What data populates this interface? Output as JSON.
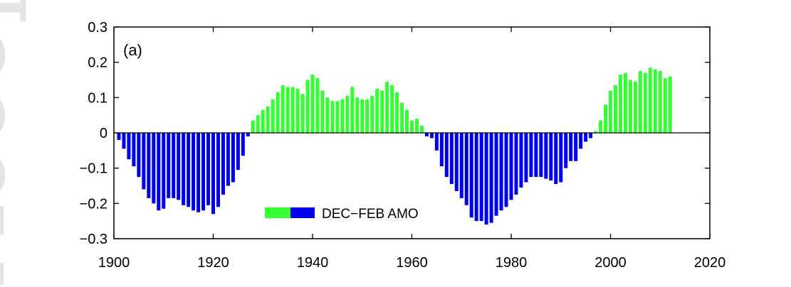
{
  "watermark": {
    "text": "Accepted"
  },
  "chart_data": {
    "type": "bar",
    "panel_label": "(a)",
    "title": "",
    "xlabel": "",
    "ylabel": "",
    "xlim": [
      1900,
      2020
    ],
    "ylim": [
      -0.3,
      0.3
    ],
    "x_ticks": [
      1900,
      1920,
      1940,
      1960,
      1980,
      2000,
      2020
    ],
    "x_tick_labels": [
      "1900",
      "1920",
      "1940",
      "1960",
      "1980",
      "2000",
      "2020"
    ],
    "y_ticks": [
      0.3,
      0.2,
      0.1,
      0,
      -0.1,
      -0.2,
      -0.3
    ],
    "y_tick_labels": [
      "0.3",
      "0.2",
      "0.1",
      "0",
      "−0.1",
      "−0.2",
      "−0.3"
    ],
    "grid": false,
    "colors": {
      "positive": "#33ff33",
      "negative": "#0000ee",
      "zero_line": "#000000"
    },
    "legend": {
      "label": "DEC−FEB AMO",
      "placement": "bottom-center"
    },
    "series": [
      {
        "name": "DEC−FEB AMO",
        "x": [
          1901,
          1902,
          1903,
          1904,
          1905,
          1906,
          1907,
          1908,
          1909,
          1910,
          1911,
          1912,
          1913,
          1914,
          1915,
          1916,
          1917,
          1918,
          1919,
          1920,
          1921,
          1922,
          1923,
          1924,
          1925,
          1926,
          1927,
          1928,
          1929,
          1930,
          1931,
          1932,
          1933,
          1934,
          1935,
          1936,
          1937,
          1938,
          1939,
          1940,
          1941,
          1942,
          1943,
          1944,
          1945,
          1946,
          1947,
          1948,
          1949,
          1950,
          1951,
          1952,
          1953,
          1954,
          1955,
          1956,
          1957,
          1958,
          1959,
          1960,
          1961,
          1962,
          1963,
          1964,
          1965,
          1966,
          1967,
          1968,
          1969,
          1970,
          1971,
          1972,
          1973,
          1974,
          1975,
          1976,
          1977,
          1978,
          1979,
          1980,
          1981,
          1982,
          1983,
          1984,
          1985,
          1986,
          1987,
          1988,
          1989,
          1990,
          1991,
          1992,
          1993,
          1994,
          1995,
          1996,
          1997,
          1998,
          1999,
          2000,
          2001,
          2002,
          2003,
          2004,
          2005,
          2006,
          2007,
          2008,
          2009,
          2010,
          2011,
          2012
        ],
        "values": [
          -0.02,
          -0.045,
          -0.075,
          -0.095,
          -0.125,
          -0.16,
          -0.185,
          -0.2,
          -0.22,
          -0.215,
          -0.185,
          -0.185,
          -0.19,
          -0.205,
          -0.21,
          -0.22,
          -0.225,
          -0.22,
          -0.205,
          -0.23,
          -0.21,
          -0.175,
          -0.15,
          -0.14,
          -0.105,
          -0.065,
          -0.01,
          0.035,
          0.05,
          0.065,
          0.075,
          0.095,
          0.115,
          0.135,
          0.13,
          0.13,
          0.125,
          0.11,
          0.15,
          0.165,
          0.155,
          0.12,
          0.1,
          0.09,
          0.09,
          0.095,
          0.105,
          0.13,
          0.1,
          0.095,
          0.095,
          0.105,
          0.125,
          0.12,
          0.145,
          0.135,
          0.115,
          0.085,
          0.065,
          0.035,
          0.04,
          0.02,
          -0.01,
          -0.015,
          -0.05,
          -0.095,
          -0.125,
          -0.145,
          -0.165,
          -0.185,
          -0.205,
          -0.24,
          -0.25,
          -0.25,
          -0.26,
          -0.255,
          -0.235,
          -0.22,
          -0.21,
          -0.19,
          -0.175,
          -0.155,
          -0.14,
          -0.125,
          -0.125,
          -0.125,
          -0.13,
          -0.135,
          -0.145,
          -0.14,
          -0.1,
          -0.08,
          -0.08,
          -0.045,
          -0.025,
          -0.015,
          0.005,
          0.035,
          0.08,
          0.12,
          0.135,
          0.165,
          0.17,
          0.15,
          0.145,
          0.175,
          0.17,
          0.185,
          0.18,
          0.175,
          0.155,
          0.16
        ]
      }
    ]
  }
}
